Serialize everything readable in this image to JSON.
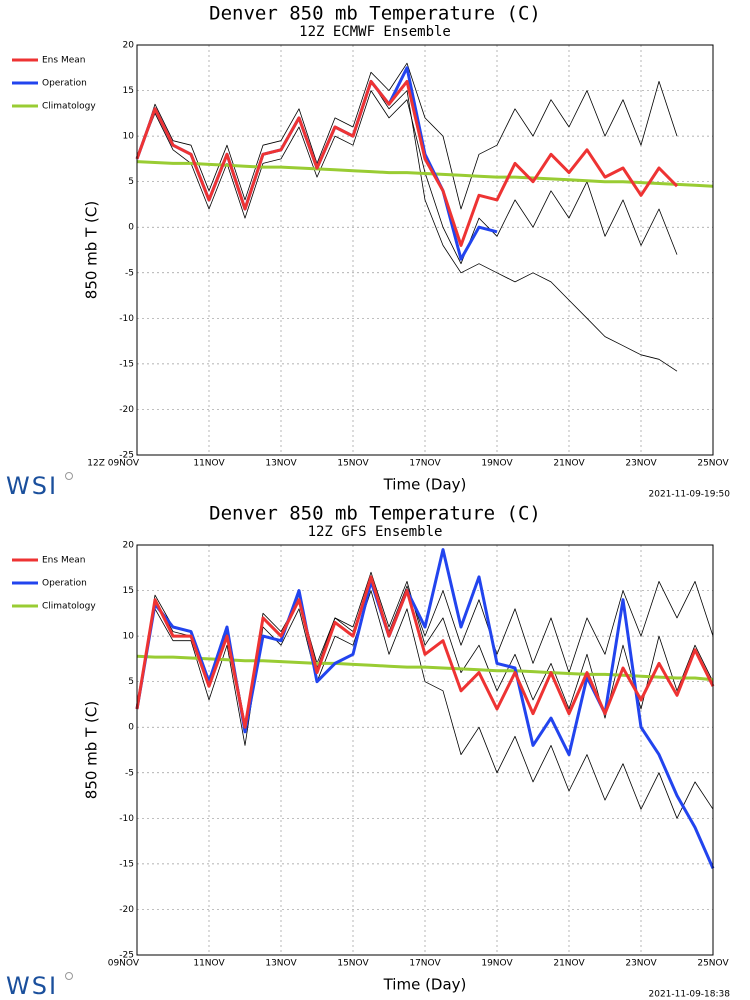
{
  "chart_data": [
    {
      "type": "line",
      "title": "Denver 850 mb Temperature (C)",
      "subtitle": "12Z ECMWF Ensemble",
      "x_label": "Time (Day)",
      "y_label": "850 mb T (C)",
      "logo": "WSI",
      "timestamp": "2021-11-09-19:50",
      "xlim": [
        0,
        16
      ],
      "ylim": [
        -25,
        20
      ],
      "grid": true,
      "legend": "left",
      "xticks": [
        {
          "value": 0,
          "label": "12Z 09NOV"
        },
        {
          "value": 2,
          "label": "11NOV"
        },
        {
          "value": 4,
          "label": "13NOV"
        },
        {
          "value": 6,
          "label": "15NOV"
        },
        {
          "value": 8,
          "label": "17NOV"
        },
        {
          "value": 10,
          "label": "19NOV"
        },
        {
          "value": 12,
          "label": "21NOV"
        },
        {
          "value": 14,
          "label": "23NOV"
        },
        {
          "value": 16,
          "label": "25NOV"
        }
      ],
      "yticks": [
        -25,
        -20,
        -15,
        -10,
        -5,
        0,
        5,
        10,
        15,
        20
      ],
      "x": [
        0,
        0.5,
        1,
        1.5,
        2,
        2.5,
        3,
        3.5,
        4,
        4.5,
        5,
        5.5,
        6,
        6.5,
        7,
        7.5,
        8,
        8.5,
        9,
        9.5,
        10,
        10.5,
        11,
        11.5,
        12,
        12.5,
        13,
        13.5,
        14,
        14.5,
        15,
        15.5,
        16
      ],
      "series": [
        {
          "color": "#000000",
          "values": [
            7.5,
            13,
            9,
            8,
            3,
            8,
            2,
            8,
            8.5,
            12,
            6.5,
            11,
            10,
            16,
            13,
            15,
            3,
            -2,
            -5,
            -4,
            -5,
            -6,
            -5,
            -6,
            -8,
            -10,
            -12,
            -13,
            -14,
            -14.5,
            -15.8,
            null,
            null
          ]
        },
        {
          "color": "#000000",
          "values": [
            7.5,
            13.5,
            9.5,
            9,
            4,
            9,
            3,
            9,
            9.5,
            13,
            7,
            12,
            11,
            17,
            15,
            18,
            12,
            10,
            2,
            8,
            9,
            13,
            10,
            14,
            11,
            15,
            10,
            14,
            9,
            16,
            10,
            null,
            null
          ]
        },
        {
          "color": "#000000",
          "values": [
            7.5,
            12.5,
            8.5,
            7,
            2,
            7,
            1,
            7,
            7.5,
            11,
            5.5,
            10,
            9,
            15,
            12,
            14,
            6,
            0,
            -4,
            1,
            -1,
            3,
            0,
            4,
            1,
            5,
            -1,
            3,
            -2,
            2,
            -3,
            null,
            null
          ]
        },
        {
          "name": "Climatology",
          "color": "#99cc33",
          "values": [
            7.2,
            7.1,
            7.0,
            7.0,
            6.9,
            6.8,
            6.7,
            6.6,
            6.6,
            6.5,
            6.4,
            6.3,
            6.2,
            6.1,
            6.0,
            6.0,
            5.9,
            5.8,
            5.7,
            5.6,
            5.5,
            5.5,
            5.4,
            5.3,
            5.2,
            5.1,
            5.0,
            5.0,
            4.9,
            4.8,
            4.7,
            4.6,
            4.5
          ]
        },
        {
          "name": "Operation",
          "color": "#2244ee",
          "values": [
            7.5,
            13,
            9,
            8,
            3,
            8,
            2,
            8,
            8.5,
            12,
            6.5,
            11,
            10,
            16,
            13.5,
            17.5,
            8,
            4,
            -3.5,
            0,
            -0.5,
            null,
            null,
            null,
            null,
            null,
            null,
            null,
            null,
            null,
            null,
            null,
            null
          ]
        },
        {
          "name": "Ens Mean",
          "color": "#ee3333",
          "values": [
            7.5,
            13,
            9,
            8,
            3,
            8,
            2,
            8,
            8.5,
            12,
            6.5,
            11,
            10,
            16,
            13.5,
            16,
            7.5,
            4,
            -2,
            3.5,
            3,
            7,
            5,
            8,
            6,
            8.5,
            5.5,
            6.5,
            3.5,
            6.5,
            4.5,
            null,
            null
          ]
        }
      ]
    },
    {
      "type": "line",
      "title": "Denver 850 mb Temperature (C)",
      "subtitle": "12Z GFS Ensemble",
      "x_label": "Time (Day)",
      "y_label": "850 mb T (C)",
      "logo": "WSI",
      "timestamp": "2021-11-09-18:38",
      "xlim": [
        0,
        16
      ],
      "ylim": [
        -25,
        20
      ],
      "grid": true,
      "legend": "left",
      "xticks": [
        {
          "value": 0,
          "label": "09NOV"
        },
        {
          "value": 2,
          "label": "11NOV"
        },
        {
          "value": 4,
          "label": "13NOV"
        },
        {
          "value": 6,
          "label": "15NOV"
        },
        {
          "value": 8,
          "label": "17NOV"
        },
        {
          "value": 10,
          "label": "19NOV"
        },
        {
          "value": 12,
          "label": "21NOV"
        },
        {
          "value": 14,
          "label": "23NOV"
        },
        {
          "value": 16,
          "label": "25NOV"
        }
      ],
      "yticks": [
        -25,
        -20,
        -15,
        -10,
        -5,
        0,
        5,
        10,
        15,
        20
      ],
      "x": [
        0,
        0.5,
        1,
        1.5,
        2,
        2.5,
        3,
        3.5,
        4,
        4.5,
        5,
        5.5,
        6,
        6.5,
        7,
        7.5,
        8,
        8.5,
        9,
        9.5,
        10,
        10.5,
        11,
        11.5,
        12,
        12.5,
        13,
        13.5,
        14,
        14.5,
        15,
        15.5,
        16
      ],
      "series": [
        {
          "color": "#000000",
          "values": [
            2,
            14.5,
            11,
            10.5,
            5,
            11,
            0.5,
            12.5,
            10.5,
            14,
            7,
            12,
            11,
            17,
            11,
            16,
            9,
            12,
            6,
            9,
            4,
            8,
            3,
            7,
            2,
            8,
            1,
            9,
            2,
            10,
            4,
            9,
            5
          ]
        },
        {
          "color": "#000000",
          "values": [
            2,
            13,
            9.5,
            9.5,
            3,
            9,
            -2,
            11,
            9,
            13,
            5,
            10,
            9,
            15,
            8,
            13,
            5,
            4,
            -3,
            0,
            -5,
            -1,
            -6,
            -2,
            -7,
            -3,
            -8,
            -4,
            -9,
            -5,
            -10,
            -6,
            -9
          ]
        },
        {
          "color": "#000000",
          "values": [
            2,
            14,
            10.5,
            10,
            4.5,
            10.5,
            -0.5,
            12,
            10,
            14.5,
            6.5,
            12,
            10.5,
            16.5,
            10.5,
            15.5,
            10,
            15,
            9,
            14,
            8,
            13,
            7,
            12,
            6,
            12,
            8,
            15,
            10,
            16,
            12,
            16,
            10
          ]
        },
        {
          "name": "Climatology",
          "color": "#99cc33",
          "values": [
            7.8,
            7.7,
            7.7,
            7.6,
            7.5,
            7.4,
            7.3,
            7.3,
            7.2,
            7.1,
            7.0,
            7.0,
            6.9,
            6.8,
            6.7,
            6.6,
            6.6,
            6.5,
            6.4,
            6.3,
            6.2,
            6.2,
            6.1,
            6.0,
            5.9,
            5.8,
            5.8,
            5.7,
            5.6,
            5.5,
            5.4,
            5.4,
            5.2
          ]
        },
        {
          "name": "Operation",
          "color": "#2244ee",
          "values": [
            2,
            13.5,
            11,
            10.5,
            5,
            11,
            -0.5,
            10,
            9.5,
            15,
            5,
            7,
            8,
            16,
            10,
            15,
            11,
            19.5,
            11,
            16.5,
            7,
            6.5,
            -2,
            1,
            -3,
            5.5,
            1.5,
            14,
            0,
            -3,
            -7.5,
            -11,
            -15.5
          ]
        },
        {
          "name": "Ens Mean",
          "color": "#ee3333",
          "values": [
            2,
            14,
            10,
            10,
            4.5,
            10,
            0,
            12,
            10,
            14,
            6,
            11.5,
            10,
            16.5,
            10,
            15,
            8,
            9.5,
            4,
            6,
            2,
            6,
            1.5,
            6,
            1.5,
            6,
            1.5,
            6.5,
            3,
            7,
            3.5,
            8.5,
            4.5
          ]
        }
      ]
    }
  ]
}
